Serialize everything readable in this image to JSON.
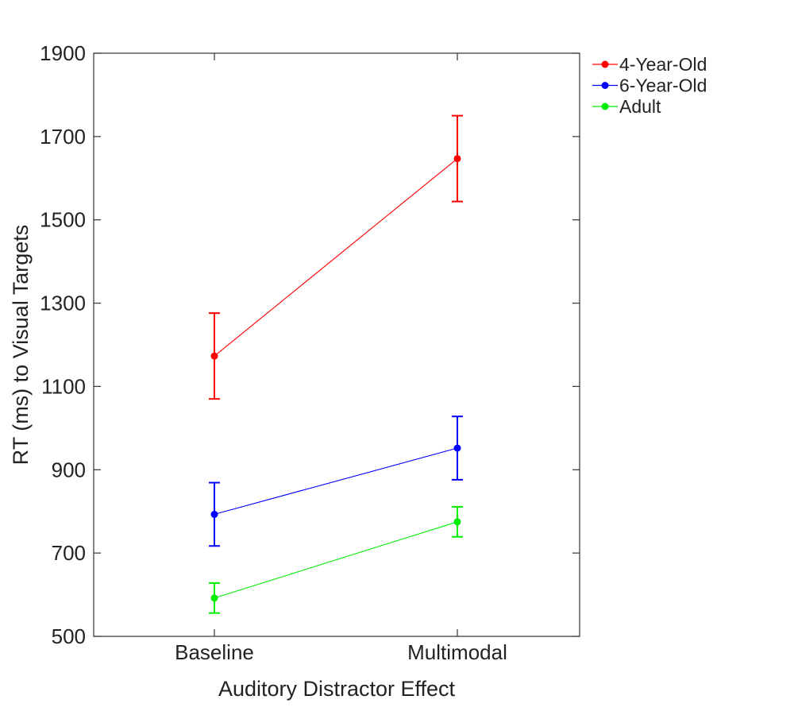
{
  "chart_data": {
    "type": "line",
    "title": "",
    "xlabel": "Auditory Distractor Effect",
    "ylabel": "RT (ms) to Visual Targets",
    "categories": [
      "Baseline",
      "Multimodal"
    ],
    "ylim": [
      500,
      1900
    ],
    "yticks": [
      500,
      700,
      900,
      1100,
      1300,
      1500,
      1700,
      1900
    ],
    "ytick_labels": [
      "500",
      "700",
      "900",
      "1100",
      "1300",
      "1500",
      "1700",
      "1900"
    ],
    "grid": false,
    "legend_position": "outside-top-right",
    "series": [
      {
        "name": "4-Year-Old",
        "color": "#ff0000",
        "values": [
          1173,
          1647
        ],
        "errors": [
          103,
          103
        ]
      },
      {
        "name": "6-Year-Old",
        "color": "#0000ff",
        "values": [
          793,
          952
        ],
        "errors": [
          76,
          76
        ]
      },
      {
        "name": "Adult",
        "color": "#00ee00",
        "values": [
          592,
          775
        ],
        "errors": [
          36,
          36
        ]
      }
    ]
  }
}
